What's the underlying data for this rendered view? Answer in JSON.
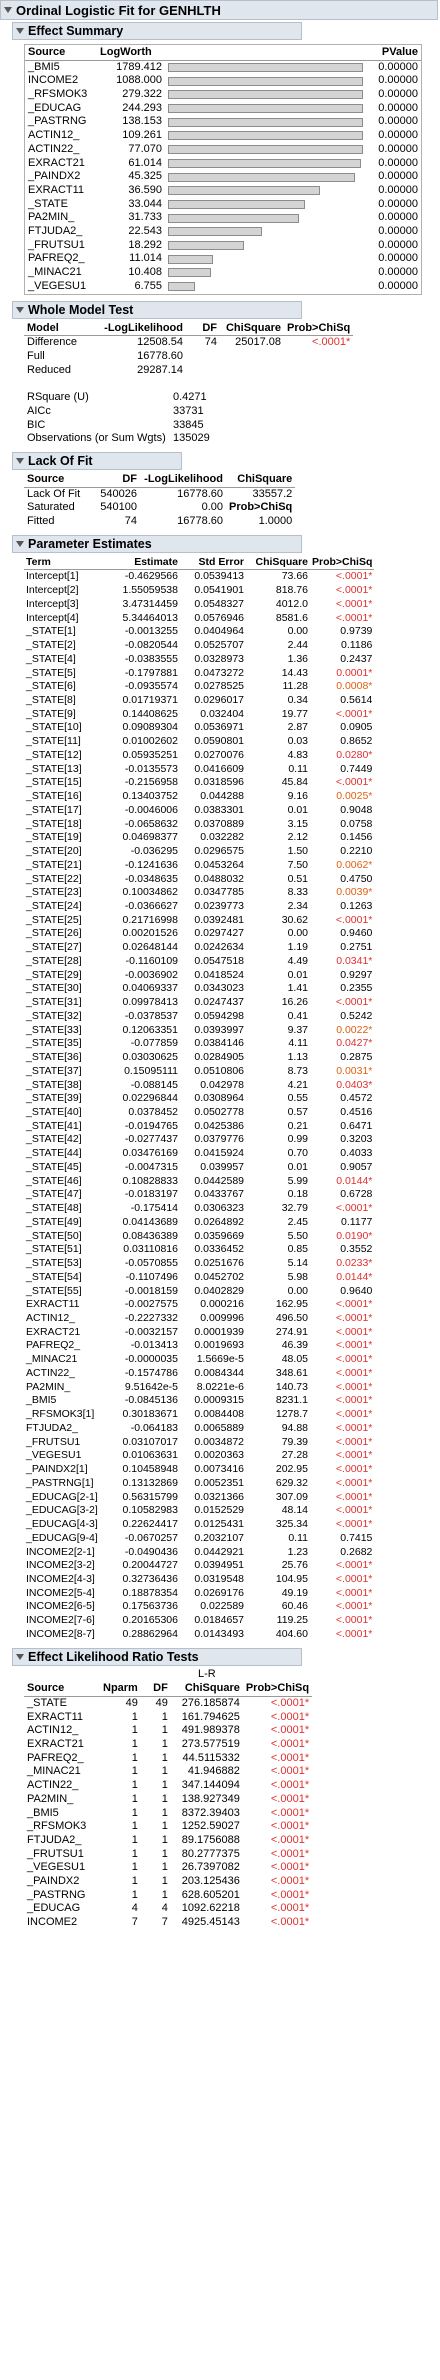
{
  "title": "Ordinal Logistic Fit for GENHLTH",
  "effect_summary": {
    "header": "Effect Summary",
    "columns": [
      "Source",
      "LogWorth",
      "PValue"
    ],
    "rows": [
      {
        "source": "_BMI5",
        "logworth": "1789.412",
        "pvalue": "0.00000",
        "bar": 1.0
      },
      {
        "source": "INCOME2",
        "logworth": "1088.000",
        "pvalue": "0.00000",
        "bar": 1.0
      },
      {
        "source": "_RFSMOK3",
        "logworth": "279.322",
        "pvalue": "0.00000",
        "bar": 1.0
      },
      {
        "source": "_EDUCAG",
        "logworth": "244.293",
        "pvalue": "0.00000",
        "bar": 1.0
      },
      {
        "source": "_PASTRNG",
        "logworth": "138.153",
        "pvalue": "0.00000",
        "bar": 1.0
      },
      {
        "source": "ACTIN12_",
        "logworth": "109.261",
        "pvalue": "0.00000",
        "bar": 1.0
      },
      {
        "source": "ACTIN22_",
        "logworth": "77.070",
        "pvalue": "0.00000",
        "bar": 1.0
      },
      {
        "source": "EXRACT21",
        "logworth": "61.014",
        "pvalue": "0.00000",
        "bar": 0.99
      },
      {
        "source": "_PAINDX2",
        "logworth": "45.325",
        "pvalue": "0.00000",
        "bar": 0.96
      },
      {
        "source": "EXRACT11",
        "logworth": "36.590",
        "pvalue": "0.00000",
        "bar": 0.78
      },
      {
        "source": "_STATE",
        "logworth": "33.044",
        "pvalue": "0.00000",
        "bar": 0.7
      },
      {
        "source": "PA2MIN_",
        "logworth": "31.733",
        "pvalue": "0.00000",
        "bar": 0.67
      },
      {
        "source": "FTJUDA2_",
        "logworth": "22.543",
        "pvalue": "0.00000",
        "bar": 0.48
      },
      {
        "source": "_FRUTSU1",
        "logworth": "18.292",
        "pvalue": "0.00000",
        "bar": 0.39
      },
      {
        "source": "PAFREQ2_",
        "logworth": "11.014",
        "pvalue": "0.00000",
        "bar": 0.23
      },
      {
        "source": "_MINAC21",
        "logworth": "10.408",
        "pvalue": "0.00000",
        "bar": 0.22
      },
      {
        "source": "_VEGESU1",
        "logworth": "6.755",
        "pvalue": "0.00000",
        "bar": 0.14
      }
    ]
  },
  "whole_model": {
    "header": "Whole Model Test",
    "columns": [
      "Model",
      "-LogLikelihood",
      "DF",
      "ChiSquare",
      "Prob>ChiSq"
    ],
    "rows": [
      [
        "Difference",
        "12508.54",
        "74",
        "25017.08",
        "<.0001*"
      ],
      [
        "Full",
        "16778.60",
        "",
        "",
        ""
      ],
      [
        "Reduced",
        "29287.14",
        "",
        "",
        ""
      ]
    ],
    "stats": [
      [
        "RSquare (U)",
        "0.4271"
      ],
      [
        "AICc",
        "33731"
      ],
      [
        "BIC",
        "33845"
      ],
      [
        "Observations (or Sum Wgts)",
        "135029"
      ]
    ]
  },
  "lack_of_fit": {
    "header": "Lack Of Fit",
    "columns": [
      "Source",
      "DF",
      "-LogLikelihood",
      "ChiSquare"
    ],
    "rows": [
      [
        "Lack Of Fit",
        "540026",
        "16778.60",
        "33557.2"
      ],
      [
        "Saturated",
        "540100",
        "0.00",
        "Prob>ChiSq"
      ],
      [
        "Fitted",
        "74",
        "16778.60",
        "1.0000"
      ]
    ]
  },
  "parameter_estimates": {
    "header": "Parameter Estimates",
    "columns": [
      "Term",
      "Estimate",
      "Std Error",
      "ChiSquare",
      "Prob>ChiSq"
    ],
    "rows": [
      [
        "Intercept[1]",
        "-0.4629566",
        "0.0539413",
        "73.66",
        "<.0001*",
        "r"
      ],
      [
        "Intercept[2]",
        "1.55059538",
        "0.0541901",
        "818.76",
        "<.0001*",
        "r"
      ],
      [
        "Intercept[3]",
        "3.47314459",
        "0.0548327",
        "4012.0",
        "<.0001*",
        "r"
      ],
      [
        "Intercept[4]",
        "5.34464013",
        "0.0576946",
        "8581.6",
        "<.0001*",
        "r"
      ],
      [
        "_STATE[1]",
        "-0.0013255",
        "0.0404964",
        "0.00",
        "0.9739",
        ""
      ],
      [
        "_STATE[2]",
        "-0.0820544",
        "0.0525707",
        "2.44",
        "0.1186",
        ""
      ],
      [
        "_STATE[4]",
        "-0.0383555",
        "0.0328973",
        "1.36",
        "0.2437",
        ""
      ],
      [
        "_STATE[5]",
        "-0.1797881",
        "0.0473272",
        "14.43",
        "0.0001*",
        "r"
      ],
      [
        "_STATE[6]",
        "-0.0935574",
        "0.0278525",
        "11.28",
        "0.0008*",
        "o"
      ],
      [
        "_STATE[8]",
        "0.01719371",
        "0.0296017",
        "0.34",
        "0.5614",
        ""
      ],
      [
        "_STATE[9]",
        "0.14408625",
        "0.032404",
        "19.77",
        "<.0001*",
        "r"
      ],
      [
        "_STATE[10]",
        "0.09089304",
        "0.0536971",
        "2.87",
        "0.0905",
        ""
      ],
      [
        "_STATE[11]",
        "0.01002602",
        "0.0590801",
        "0.03",
        "0.8652",
        ""
      ],
      [
        "_STATE[12]",
        "0.05935251",
        "0.0270076",
        "4.83",
        "0.0280*",
        "r"
      ],
      [
        "_STATE[13]",
        "-0.0135573",
        "0.0416609",
        "0.11",
        "0.7449",
        ""
      ],
      [
        "_STATE[15]",
        "-0.2156958",
        "0.0318596",
        "45.84",
        "<.0001*",
        "r"
      ],
      [
        "_STATE[16]",
        "0.13403752",
        "0.044288",
        "9.16",
        "0.0025*",
        "o"
      ],
      [
        "_STATE[17]",
        "-0.0046006",
        "0.0383301",
        "0.01",
        "0.9048",
        ""
      ],
      [
        "_STATE[18]",
        "-0.0658632",
        "0.0370889",
        "3.15",
        "0.0758",
        ""
      ],
      [
        "_STATE[19]",
        "0.04698377",
        "0.032282",
        "2.12",
        "0.1456",
        ""
      ],
      [
        "_STATE[20]",
        "-0.036295",
        "0.0296575",
        "1.50",
        "0.2210",
        ""
      ],
      [
        "_STATE[21]",
        "-0.1241636",
        "0.0453264",
        "7.50",
        "0.0062*",
        "o"
      ],
      [
        "_STATE[22]",
        "-0.0348635",
        "0.0488032",
        "0.51",
        "0.4750",
        ""
      ],
      [
        "_STATE[23]",
        "0.10034862",
        "0.0347785",
        "8.33",
        "0.0039*",
        "o"
      ],
      [
        "_STATE[24]",
        "-0.0366627",
        "0.0239773",
        "2.34",
        "0.1263",
        ""
      ],
      [
        "_STATE[25]",
        "0.21716998",
        "0.0392481",
        "30.62",
        "<.0001*",
        "r"
      ],
      [
        "_STATE[26]",
        "0.00201526",
        "0.0297427",
        "0.00",
        "0.9460",
        ""
      ],
      [
        "_STATE[27]",
        "0.02648144",
        "0.0242634",
        "1.19",
        "0.2751",
        ""
      ],
      [
        "_STATE[28]",
        "-0.1160109",
        "0.0547518",
        "4.49",
        "0.0341*",
        "r"
      ],
      [
        "_STATE[29]",
        "-0.0036902",
        "0.0418524",
        "0.01",
        "0.9297",
        ""
      ],
      [
        "_STATE[30]",
        "0.04069337",
        "0.0343023",
        "1.41",
        "0.2355",
        ""
      ],
      [
        "_STATE[31]",
        "0.09978413",
        "0.0247437",
        "16.26",
        "<.0001*",
        "r"
      ],
      [
        "_STATE[32]",
        "-0.0378537",
        "0.0594298",
        "0.41",
        "0.5242",
        ""
      ],
      [
        "_STATE[33]",
        "0.12063351",
        "0.0393997",
        "9.37",
        "0.0022*",
        "o"
      ],
      [
        "_STATE[35]",
        "-0.077859",
        "0.0384146",
        "4.11",
        "0.0427*",
        "r"
      ],
      [
        "_STATE[36]",
        "0.03030625",
        "0.0284905",
        "1.13",
        "0.2875",
        ""
      ],
      [
        "_STATE[37]",
        "0.15095111",
        "0.0510806",
        "8.73",
        "0.0031*",
        "o"
      ],
      [
        "_STATE[38]",
        "-0.088145",
        "0.042978",
        "4.21",
        "0.0403*",
        "r"
      ],
      [
        "_STATE[39]",
        "0.02296844",
        "0.0308964",
        "0.55",
        "0.4572",
        ""
      ],
      [
        "_STATE[40]",
        "0.0378452",
        "0.0502778",
        "0.57",
        "0.4516",
        ""
      ],
      [
        "_STATE[41]",
        "-0.0194765",
        "0.0425386",
        "0.21",
        "0.6471",
        ""
      ],
      [
        "_STATE[42]",
        "-0.0277437",
        "0.0379776",
        "0.99",
        "0.3203",
        ""
      ],
      [
        "_STATE[44]",
        "0.03476169",
        "0.0415924",
        "0.70",
        "0.4033",
        ""
      ],
      [
        "_STATE[45]",
        "-0.0047315",
        "0.039957",
        "0.01",
        "0.9057",
        ""
      ],
      [
        "_STATE[46]",
        "0.10828833",
        "0.0442589",
        "5.99",
        "0.0144*",
        "r"
      ],
      [
        "_STATE[47]",
        "-0.0183197",
        "0.0433767",
        "0.18",
        "0.6728",
        ""
      ],
      [
        "_STATE[48]",
        "-0.175414",
        "0.0306323",
        "32.79",
        "<.0001*",
        "r"
      ],
      [
        "_STATE[49]",
        "0.04143689",
        "0.0264892",
        "2.45",
        "0.1177",
        ""
      ],
      [
        "_STATE[50]",
        "0.08436389",
        "0.0359669",
        "5.50",
        "0.0190*",
        "r"
      ],
      [
        "_STATE[51]",
        "0.03110816",
        "0.0336452",
        "0.85",
        "0.3552",
        ""
      ],
      [
        "_STATE[53]",
        "-0.0570855",
        "0.0251676",
        "5.14",
        "0.0233*",
        "r"
      ],
      [
        "_STATE[54]",
        "-0.1107496",
        "0.0452702",
        "5.98",
        "0.0144*",
        "r"
      ],
      [
        "_STATE[55]",
        "-0.0018159",
        "0.0402829",
        "0.00",
        "0.9640",
        ""
      ],
      [
        "EXRACT11",
        "-0.0027575",
        "0.000216",
        "162.95",
        "<.0001*",
        "r"
      ],
      [
        "ACTIN12_",
        "-0.2227332",
        "0.009996",
        "496.50",
        "<.0001*",
        "r"
      ],
      [
        "EXRACT21",
        "-0.0032157",
        "0.0001939",
        "274.91",
        "<.0001*",
        "r"
      ],
      [
        "PAFREQ2_",
        "-0.013413",
        "0.0019693",
        "46.39",
        "<.0001*",
        "r"
      ],
      [
        "_MINAC21",
        "-0.0000035",
        "1.5669e-5",
        "48.05",
        "<.0001*",
        "r"
      ],
      [
        "ACTIN22_",
        "-0.1574786",
        "0.0084344",
        "348.61",
        "<.0001*",
        "r"
      ],
      [
        "PA2MIN_",
        "9.51642e-5",
        "8.0221e-6",
        "140.73",
        "<.0001*",
        "r"
      ],
      [
        "_BMI5",
        "-0.0845136",
        "0.0009315",
        "8231.1",
        "<.0001*",
        "r"
      ],
      [
        "_RFSMOK3[1]",
        "0.30183671",
        "0.0084408",
        "1278.7",
        "<.0001*",
        "r"
      ],
      [
        "FTJUDA2_",
        "-0.064183",
        "0.0065889",
        "94.88",
        "<.0001*",
        "r"
      ],
      [
        "_FRUTSU1",
        "0.03107017",
        "0.0034872",
        "79.39",
        "<.0001*",
        "r"
      ],
      [
        "_VEGESU1",
        "0.01063631",
        "0.0020363",
        "27.28",
        "<.0001*",
        "r"
      ],
      [
        "_PAINDX2[1]",
        "0.10458948",
        "0.0073416",
        "202.95",
        "<.0001*",
        "r"
      ],
      [
        "_PASTRNG[1]",
        "0.13132869",
        "0.0052351",
        "629.32",
        "<.0001*",
        "r"
      ],
      [
        "_EDUCAG[2-1]",
        "0.56315799",
        "0.0321366",
        "307.09",
        "<.0001*",
        "r"
      ],
      [
        "_EDUCAG[3-2]",
        "0.10582983",
        "0.0152529",
        "48.14",
        "<.0001*",
        "r"
      ],
      [
        "_EDUCAG[4-3]",
        "0.22624417",
        "0.0125431",
        "325.34",
        "<.0001*",
        "r"
      ],
      [
        "_EDUCAG[9-4]",
        "-0.0670257",
        "0.2032107",
        "0.11",
        "0.7415",
        ""
      ],
      [
        "INCOME2[2-1]",
        "-0.0490436",
        "0.0442921",
        "1.23",
        "0.2682",
        ""
      ],
      [
        "INCOME2[3-2]",
        "0.20044727",
        "0.0394951",
        "25.76",
        "<.0001*",
        "r"
      ],
      [
        "INCOME2[4-3]",
        "0.32736436",
        "0.0319548",
        "104.95",
        "<.0001*",
        "r"
      ],
      [
        "INCOME2[5-4]",
        "0.18878354",
        "0.0269176",
        "49.19",
        "<.0001*",
        "r"
      ],
      [
        "INCOME2[6-5]",
        "0.17563736",
        "0.022589",
        "60.46",
        "<.0001*",
        "r"
      ],
      [
        "INCOME2[7-6]",
        "0.20165306",
        "0.0184657",
        "119.25",
        "<.0001*",
        "r"
      ],
      [
        "INCOME2[8-7]",
        "0.28862964",
        "0.0143493",
        "404.60",
        "<.0001*",
        "r"
      ]
    ]
  },
  "lr_tests": {
    "header": "Effect Likelihood Ratio Tests",
    "super_header": "L-R",
    "columns": [
      "Source",
      "Nparm",
      "DF",
      "ChiSquare",
      "Prob>ChiSq"
    ],
    "rows": [
      [
        "_STATE",
        "49",
        "49",
        "276.185874",
        "<.0001*"
      ],
      [
        "EXRACT11",
        "1",
        "1",
        "161.794625",
        "<.0001*"
      ],
      [
        "ACTIN12_",
        "1",
        "1",
        "491.989378",
        "<.0001*"
      ],
      [
        "EXRACT21",
        "1",
        "1",
        "273.577519",
        "<.0001*"
      ],
      [
        "PAFREQ2_",
        "1",
        "1",
        "44.5115332",
        "<.0001*"
      ],
      [
        "_MINAC21",
        "1",
        "1",
        "41.946882",
        "<.0001*"
      ],
      [
        "ACTIN22_",
        "1",
        "1",
        "347.144094",
        "<.0001*"
      ],
      [
        "PA2MIN_",
        "1",
        "1",
        "138.927349",
        "<.0001*"
      ],
      [
        "_BMI5",
        "1",
        "1",
        "8372.39403",
        "<.0001*"
      ],
      [
        "_RFSMOK3",
        "1",
        "1",
        "1252.59027",
        "<.0001*"
      ],
      [
        "FTJUDA2_",
        "1",
        "1",
        "89.1756088",
        "<.0001*"
      ],
      [
        "_FRUTSU1",
        "1",
        "1",
        "80.2777375",
        "<.0001*"
      ],
      [
        "_VEGESU1",
        "1",
        "1",
        "26.7397082",
        "<.0001*"
      ],
      [
        "_PAINDX2",
        "1",
        "1",
        "203.125436",
        "<.0001*"
      ],
      [
        "_PASTRNG",
        "1",
        "1",
        "628.605201",
        "<.0001*"
      ],
      [
        "_EDUCAG",
        "4",
        "4",
        "1092.62218",
        "<.0001*"
      ],
      [
        "INCOME2",
        "7",
        "7",
        "4925.45143",
        "<.0001*"
      ]
    ]
  }
}
